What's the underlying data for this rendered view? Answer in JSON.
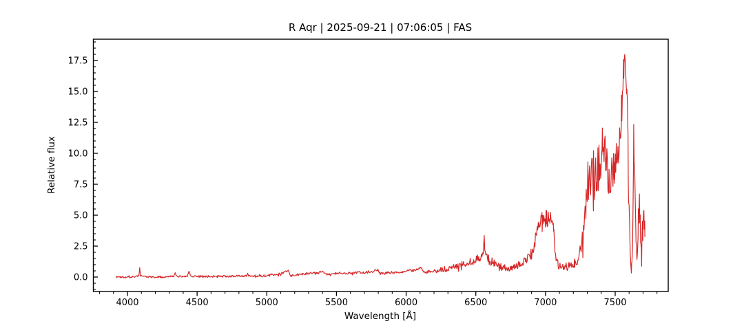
{
  "title": "R Aqr | 2025-09-21 | 07:06:05 | FAS",
  "chart_data": {
    "type": "line",
    "title": "R Aqr | 2025-09-21 | 07:06:05 | FAS",
    "xlabel": "Wavelength [Å]",
    "ylabel": "Relative flux",
    "xlim": [
      3753,
      7881
    ],
    "ylim": [
      -1.17,
      19.22
    ],
    "x_major_ticks": [
      4000,
      4500,
      5000,
      5500,
      6000,
      6500,
      7000,
      7500
    ],
    "x_minor_step": 100,
    "y_major_ticks": [
      0.0,
      2.5,
      5.0,
      7.5,
      10.0,
      12.5,
      15.0,
      17.5
    ],
    "y_minor_step": 0.5,
    "grid": false,
    "legend": "none",
    "line_color": "#d62728",
    "background_color": "#ffffff",
    "data_start_wavelength": 3920,
    "data_end_wavelength": 7713,
    "sample_step_angstrom": 4,
    "encoding": "points = [wavelength_A, relative_flux, noise_half_amplitude] read off the plotted spectrum; the jagged trace oscillates around flux by +/- noise value",
    "series": [
      {
        "name": "spectrum",
        "points": [
          [
            3920,
            0.0,
            0.1
          ],
          [
            3950,
            0.02,
            0.12
          ],
          [
            4000,
            0.03,
            0.1
          ],
          [
            4060,
            0.03,
            0.08
          ],
          [
            4082,
            0.1,
            0.06
          ],
          [
            4088,
            0.75,
            0.05
          ],
          [
            4094,
            0.1,
            0.06
          ],
          [
            4150,
            0.02,
            0.08
          ],
          [
            4250,
            0.02,
            0.08
          ],
          [
            4330,
            0.05,
            0.07
          ],
          [
            4342,
            0.3,
            0.06
          ],
          [
            4354,
            0.05,
            0.07
          ],
          [
            4430,
            0.08,
            0.07
          ],
          [
            4442,
            0.5,
            0.06
          ],
          [
            4454,
            0.08,
            0.07
          ],
          [
            4550,
            0.05,
            0.08
          ],
          [
            4650,
            0.06,
            0.08
          ],
          [
            4750,
            0.07,
            0.08
          ],
          [
            4855,
            0.1,
            0.07
          ],
          [
            4862,
            0.32,
            0.06
          ],
          [
            4870,
            0.1,
            0.07
          ],
          [
            4960,
            0.12,
            0.1
          ],
          [
            5000,
            0.1,
            0.1
          ],
          [
            5060,
            0.22,
            0.1
          ],
          [
            5110,
            0.3,
            0.1
          ],
          [
            5155,
            0.5,
            0.1
          ],
          [
            5168,
            0.12,
            0.08
          ],
          [
            5230,
            0.2,
            0.08
          ],
          [
            5300,
            0.28,
            0.1
          ],
          [
            5360,
            0.32,
            0.1
          ],
          [
            5405,
            0.45,
            0.1
          ],
          [
            5420,
            0.2,
            0.08
          ],
          [
            5500,
            0.3,
            0.1
          ],
          [
            5600,
            0.33,
            0.1
          ],
          [
            5700,
            0.38,
            0.1
          ],
          [
            5760,
            0.45,
            0.1
          ],
          [
            5795,
            0.58,
            0.1
          ],
          [
            5815,
            0.28,
            0.08
          ],
          [
            5880,
            0.35,
            0.1
          ],
          [
            5960,
            0.42,
            0.1
          ],
          [
            6040,
            0.52,
            0.12
          ],
          [
            6085,
            0.68,
            0.12
          ],
          [
            6110,
            0.72,
            0.12
          ],
          [
            6125,
            0.38,
            0.1
          ],
          [
            6180,
            0.45,
            0.15
          ],
          [
            6250,
            0.6,
            0.2
          ],
          [
            6320,
            0.75,
            0.25
          ],
          [
            6390,
            0.95,
            0.28
          ],
          [
            6450,
            1.25,
            0.32
          ],
          [
            6500,
            1.45,
            0.35
          ],
          [
            6530,
            1.6,
            0.4
          ],
          [
            6554,
            1.9,
            0.3
          ],
          [
            6560,
            3.3,
            0.15
          ],
          [
            6566,
            2.0,
            0.3
          ],
          [
            6590,
            1.55,
            0.35
          ],
          [
            6630,
            1.15,
            0.3
          ],
          [
            6680,
            0.85,
            0.28
          ],
          [
            6730,
            0.7,
            0.25
          ],
          [
            6780,
            0.85,
            0.28
          ],
          [
            6830,
            1.15,
            0.3
          ],
          [
            6880,
            1.6,
            0.35
          ],
          [
            6920,
            2.6,
            0.5
          ],
          [
            6950,
            4.2,
            0.7
          ],
          [
            6975,
            4.9,
            0.7
          ],
          [
            7005,
            4.6,
            0.8
          ],
          [
            7035,
            4.9,
            0.7
          ],
          [
            7058,
            3.8,
            0.7
          ],
          [
            7072,
            1.6,
            0.5
          ],
          [
            7090,
            0.95,
            0.4
          ],
          [
            7130,
            0.85,
            0.35
          ],
          [
            7170,
            0.95,
            0.4
          ],
          [
            7210,
            1.1,
            0.4
          ],
          [
            7240,
            1.7,
            0.5
          ],
          [
            7265,
            3.0,
            0.9
          ],
          [
            7290,
            5.5,
            1.4
          ],
          [
            7320,
            9.5,
            2.6
          ],
          [
            7345,
            8.0,
            2.8
          ],
          [
            7370,
            9.0,
            2.5
          ],
          [
            7405,
            10.5,
            2.3
          ],
          [
            7435,
            9.0,
            2.2
          ],
          [
            7465,
            8.0,
            1.6
          ],
          [
            7495,
            9.0,
            1.8
          ],
          [
            7520,
            10.5,
            1.9
          ],
          [
            7545,
            13.5,
            1.8
          ],
          [
            7562,
            16.8,
            1.2
          ],
          [
            7572,
            17.4,
            0.8
          ],
          [
            7582,
            15.5,
            1.5
          ],
          [
            7594,
            9.5,
            2.5
          ],
          [
            7604,
            4.0,
            2.0
          ],
          [
            7612,
            1.0,
            0.8
          ],
          [
            7618,
            0.6,
            0.6
          ],
          [
            7626,
            3.0,
            1.5
          ],
          [
            7633,
            11.8,
            0.7
          ],
          [
            7640,
            7.5,
            1.8
          ],
          [
            7650,
            4.5,
            2.0
          ],
          [
            7658,
            1.5,
            1.2
          ],
          [
            7666,
            5.5,
            2.0
          ],
          [
            7674,
            5.0,
            1.8
          ],
          [
            7682,
            3.5,
            1.5
          ],
          [
            7690,
            2.0,
            1.2
          ],
          [
            7698,
            4.0,
            1.5
          ],
          [
            7706,
            4.5,
            1.3
          ],
          [
            7713,
            3.8,
            0.8
          ]
        ]
      }
    ]
  }
}
